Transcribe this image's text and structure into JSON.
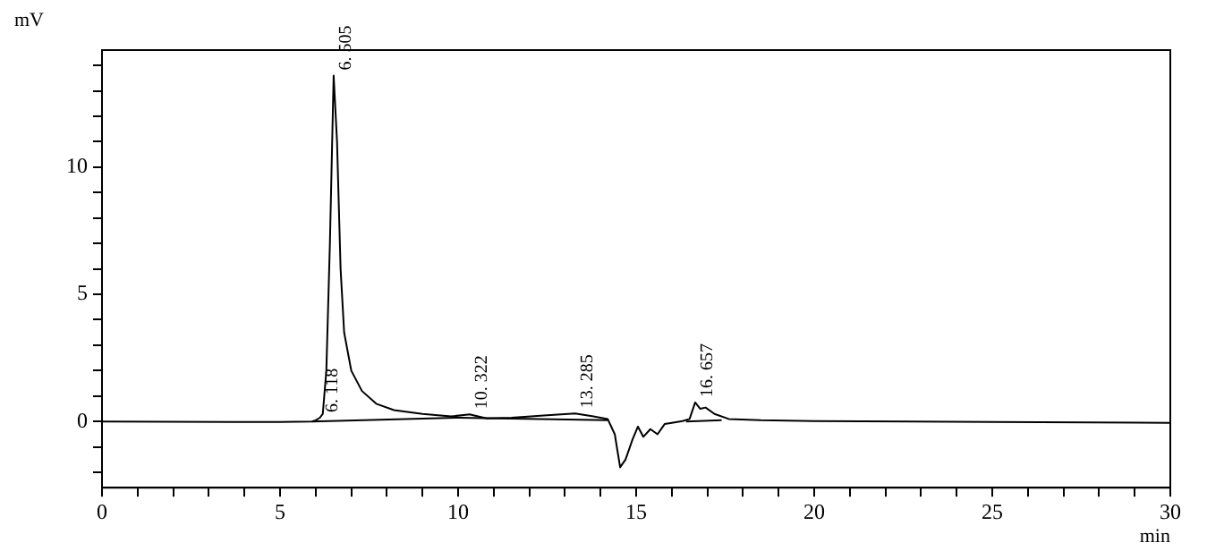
{
  "chart_data": {
    "type": "line",
    "xlabel": "min",
    "ylabel": "mV",
    "xlim": [
      0,
      30
    ],
    "ylim": [
      -2.6,
      14.6
    ],
    "xticks": [
      0,
      {
        "value": 1,
        "label": null
      },
      {
        "value": 2,
        "label": null
      },
      {
        "value": 3,
        "label": null
      },
      {
        "value": 4,
        "label": null
      },
      5,
      {
        "value": 6,
        "label": null
      },
      {
        "value": 7,
        "label": null
      },
      {
        "value": 8,
        "label": null
      },
      {
        "value": 9,
        "label": null
      },
      10,
      {
        "value": 11,
        "label": null
      },
      {
        "value": 12,
        "label": null
      },
      {
        "value": 13,
        "label": null
      },
      {
        "value": 14,
        "label": null
      },
      15,
      {
        "value": 16,
        "label": null
      },
      {
        "value": 17,
        "label": null
      },
      {
        "value": 18,
        "label": null
      },
      {
        "value": 19,
        "label": null
      },
      20,
      {
        "value": 21,
        "label": null
      },
      {
        "value": 22,
        "label": null
      },
      {
        "value": 23,
        "label": null
      },
      {
        "value": 24,
        "label": null
      },
      25,
      {
        "value": 26,
        "label": null
      },
      {
        "value": 27,
        "label": null
      },
      {
        "value": 28,
        "label": null
      },
      {
        "value": 29,
        "label": null
      },
      30
    ],
    "yticks": [
      {
        "value": -2,
        "label": null
      },
      {
        "value": -1,
        "label": null
      },
      0,
      {
        "value": 1,
        "label": null
      },
      {
        "value": 2,
        "label": null
      },
      {
        "value": 3,
        "label": null
      },
      {
        "value": 4,
        "label": null
      },
      5,
      {
        "value": 6,
        "label": null
      },
      {
        "value": 7,
        "label": null
      },
      {
        "value": 8,
        "label": null
      },
      {
        "value": 9,
        "label": null
      },
      10,
      {
        "value": 11,
        "label": null
      },
      {
        "value": 12,
        "label": null
      },
      {
        "value": 13,
        "label": null
      },
      {
        "value": 14,
        "label": null
      }
    ],
    "grid": false,
    "legend": false,
    "marker": "none",
    "line_style": "solid",
    "series": [
      {
        "color": "#000000",
        "x": [
          0,
          5,
          5.9,
          6.0,
          6.118,
          6.2,
          6.3,
          6.4,
          6.505,
          6.6,
          6.7,
          6.8,
          7.0,
          7.3,
          7.7,
          8.2,
          9,
          9.8,
          10.322,
          10.8,
          11.5,
          12.5,
          13.285,
          13.8,
          14.2,
          14.4,
          14.55,
          14.7,
          14.9,
          15.05,
          15.2,
          15.4,
          15.6,
          15.8,
          16.0,
          16.3,
          16.5,
          16.657,
          16.8,
          16.95,
          17.2,
          17.6,
          18.5,
          20,
          25,
          30
        ],
        "values": [
          0,
          -0.02,
          0,
          0.05,
          0.15,
          0.3,
          2,
          7,
          13.6,
          11,
          6,
          3.5,
          2,
          1.2,
          0.7,
          0.45,
          0.3,
          0.2,
          0.28,
          0.12,
          0.15,
          0.25,
          0.32,
          0.2,
          0.1,
          -0.5,
          -1.8,
          -1.5,
          -0.7,
          -0.2,
          -0.6,
          -0.3,
          -0.5,
          -0.1,
          -0.05,
          0.02,
          0.1,
          0.75,
          0.5,
          0.55,
          0.3,
          0.1,
          0.05,
          0.02,
          -0.02,
          -0.05
        ]
      },
      {
        "color": "#000000",
        "x": [
          5.9,
          10,
          14.2,
          16.3,
          16.4,
          17.4
        ],
        "values": [
          0,
          0.15,
          0.05,
          null,
          0,
          0.05
        ]
      }
    ],
    "annotations": [
      {
        "text": "6. 118",
        "x": 6.118,
        "y": 0.15
      },
      {
        "text": "6. 505",
        "x": 6.505,
        "y": 13.6
      },
      {
        "text": "10. 322",
        "x": 10.322,
        "y": 0.28
      },
      {
        "text": "13. 285",
        "x": 13.285,
        "y": 0.32
      },
      {
        "text": "16. 657",
        "x": 16.657,
        "y": 0.75
      }
    ]
  }
}
